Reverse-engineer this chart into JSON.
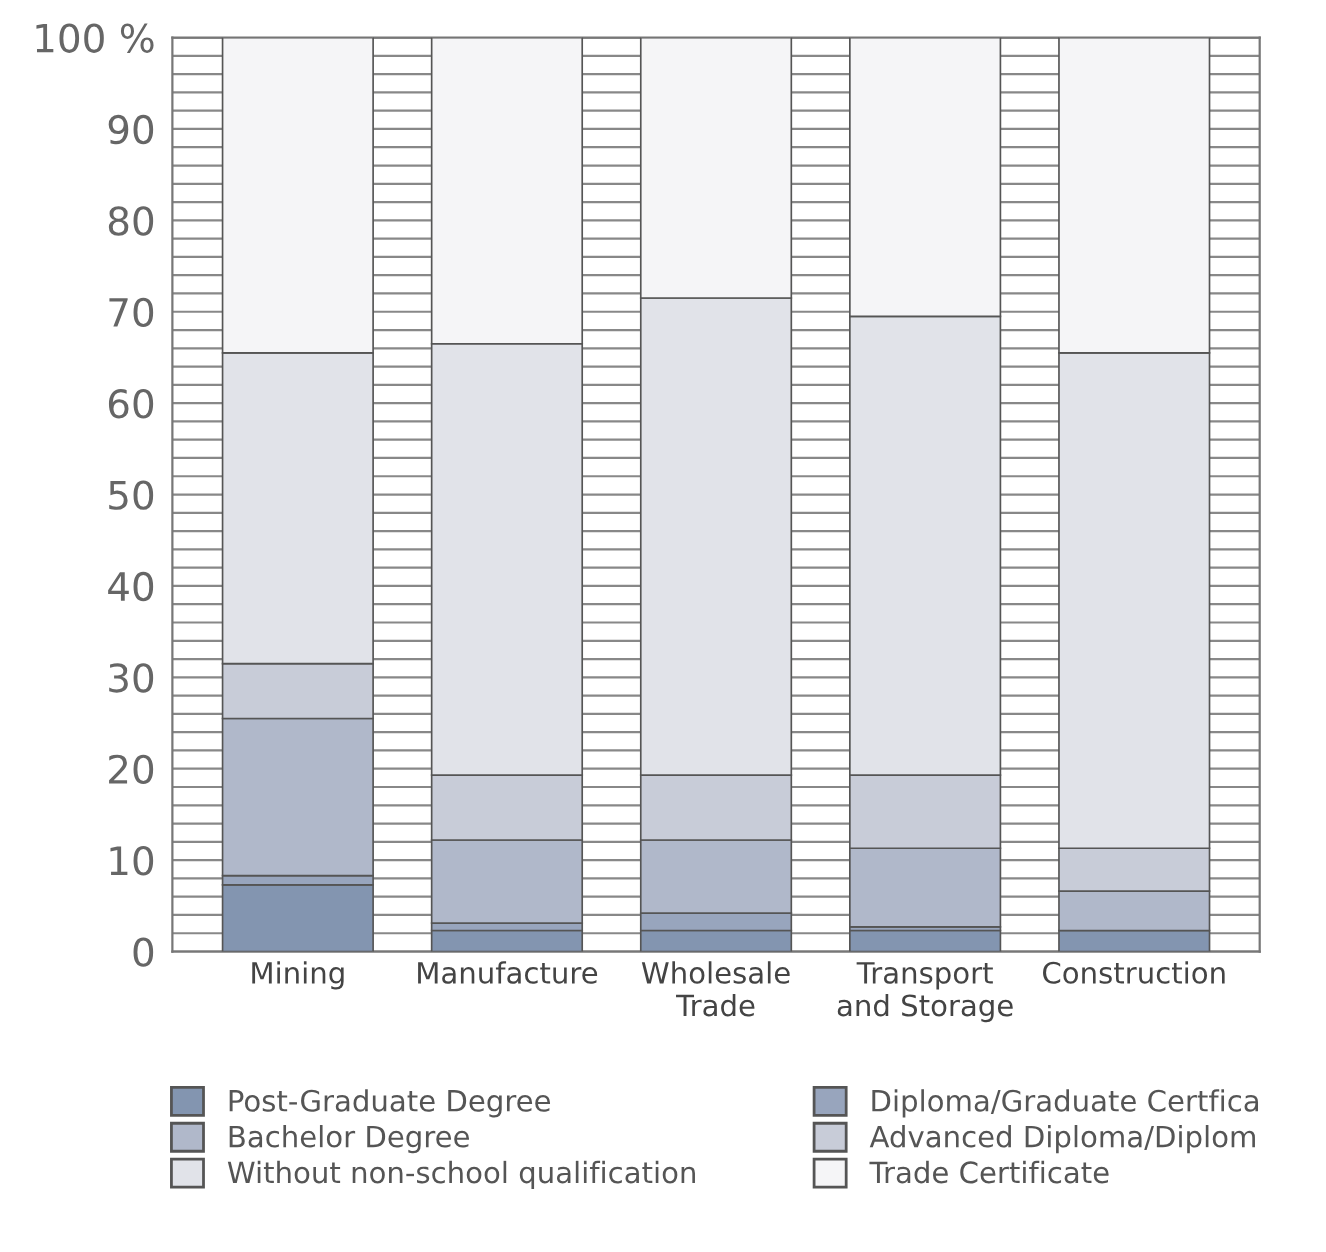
{
  "chart_data": {
    "type": "bar",
    "stacked": true,
    "categories": [
      "Mining",
      "Manufacture",
      "Wholesale\nTrade",
      "Transport\nand Storage",
      "Construction"
    ],
    "series": [
      {
        "name": "Post-Graduate Degree",
        "color": "#8395b0",
        "values": [
          7.3,
          2.3,
          2.3,
          2.3,
          2.3
        ]
      },
      {
        "name": "Diploma/Graduate Certfica",
        "color": "#98a5bd",
        "values": [
          1.0,
          0.8,
          1.9,
          0.4,
          0
        ]
      },
      {
        "name": "Bachelor Degree",
        "color": "#b0b8ca",
        "values": [
          17.2,
          9.1,
          8.0,
          8.6,
          4.3
        ]
      },
      {
        "name": "Advanced Diploma/Diplom",
        "color": "#c8ccd8",
        "values": [
          6.0,
          7.1,
          7.1,
          8.0,
          4.7
        ]
      },
      {
        "name": "Without non-school qualification",
        "color": "#e1e3e9",
        "values": [
          34.0,
          47.2,
          52.2,
          50.2,
          54.2
        ]
      },
      {
        "name": "Trade Certificate",
        "color": "#f5f5f7",
        "values": [
          34.5,
          33.5,
          28.5,
          30.5,
          34.5
        ]
      }
    ],
    "ylim": [
      0,
      100
    ],
    "yticks": [
      0,
      {
        "value": 2,
        "label": null
      },
      {
        "value": 4,
        "label": null
      },
      {
        "value": 6,
        "label": null
      },
      {
        "value": 8,
        "label": null
      },
      10,
      {
        "value": 12,
        "label": null
      },
      {
        "value": 14,
        "label": null
      },
      {
        "value": 16,
        "label": null
      },
      {
        "value": 18,
        "label": null
      },
      20,
      {
        "value": 22,
        "label": null
      },
      {
        "value": 24,
        "label": null
      },
      {
        "value": 26,
        "label": null
      },
      {
        "value": 28,
        "label": null
      },
      30,
      {
        "value": 32,
        "label": null
      },
      {
        "value": 34,
        "label": null
      },
      {
        "value": 36,
        "label": null
      },
      {
        "value": 38,
        "label": null
      },
      40,
      {
        "value": 42,
        "label": null
      },
      {
        "value": 44,
        "label": null
      },
      {
        "value": 46,
        "label": null
      },
      {
        "value": 48,
        "label": null
      },
      50,
      {
        "value": 52,
        "label": null
      },
      {
        "value": 54,
        "label": null
      },
      {
        "value": 56,
        "label": null
      },
      {
        "value": 58,
        "label": null
      },
      60,
      {
        "value": 62,
        "label": null
      },
      {
        "value": 64,
        "label": null
      },
      {
        "value": 66,
        "label": null
      },
      {
        "value": 68,
        "label": null
      },
      70,
      {
        "value": 72,
        "label": null
      },
      {
        "value": 74,
        "label": null
      },
      {
        "value": 76,
        "label": null
      },
      {
        "value": 78,
        "label": null
      },
      80,
      {
        "value": 82,
        "label": null
      },
      {
        "value": 84,
        "label": null
      },
      {
        "value": 86,
        "label": null
      },
      {
        "value": 88,
        "label": null
      },
      90,
      {
        "value": 92,
        "label": null
      },
      {
        "value": 94,
        "label": null
      },
      {
        "value": 96,
        "label": null
      },
      {
        "value": 98,
        "label": null
      },
      {
        "value": 100,
        "label": "100 %"
      }
    ],
    "grid": "y",
    "legend": "bottom"
  }
}
